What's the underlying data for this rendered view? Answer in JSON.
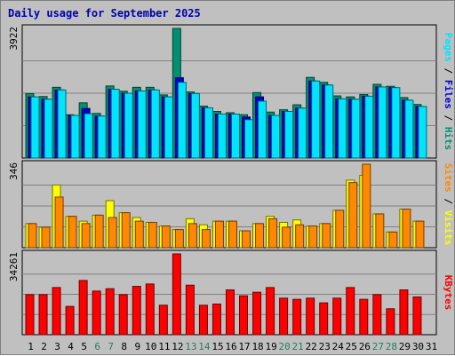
{
  "chart_data": {
    "type": "bar",
    "title": "Daily usage for September 2025",
    "categories": [
      "1",
      "2",
      "3",
      "4",
      "5",
      "6",
      "7",
      "8",
      "9",
      "10",
      "11",
      "12",
      "13",
      "14",
      "15",
      "16",
      "17",
      "18",
      "19",
      "20",
      "21",
      "22",
      "23",
      "24",
      "25",
      "26",
      "27",
      "28",
      "29",
      "30",
      "31"
    ],
    "weekend_days": [
      "6",
      "7",
      "13",
      "14",
      "20",
      "21",
      "27",
      "28"
    ],
    "panels": [
      {
        "id": "pages-files-hits",
        "ymax_label": "3922",
        "ylim": [
          0,
          3922
        ],
        "side_label": [
          "Pages",
          "Files",
          "Hits"
        ],
        "series": [
          {
            "name": "Hits",
            "color": "#009270",
            "values": [
              1950,
              1860,
              2140,
              1310,
              1670,
              1350,
              2180,
              2020,
              2140,
              2140,
              1910,
              3922,
              2000,
              1570,
              1410,
              1370,
              1310,
              1980,
              1390,
              1460,
              1610,
              2440,
              2290,
              1880,
              1850,
              1920,
              2230,
              2170,
              1830,
              1620,
              null
            ]
          },
          {
            "name": "Files",
            "color": "#0000cc",
            "values": [
              1850,
              1780,
              2060,
              1290,
              1500,
              1270,
              2080,
              1960,
              2030,
              2060,
              1850,
              2430,
              1950,
              1520,
              1330,
              1330,
              1240,
              1850,
              1290,
              1410,
              1510,
              2330,
              2210,
              1790,
              1780,
              1870,
              2150,
              2130,
              1750,
              1560,
              null
            ]
          },
          {
            "name": "Pages",
            "color": "#00e4ff",
            "values": [
              1850,
              1780,
              2060,
              1290,
              1340,
              1270,
              2080,
              1960,
              2030,
              2060,
              1850,
              2290,
              1950,
              1520,
              1330,
              1330,
              1160,
              1720,
              1290,
              1410,
              1510,
              2330,
              2210,
              1790,
              1780,
              1870,
              2150,
              2130,
              1750,
              1560,
              null
            ]
          }
        ]
      },
      {
        "id": "visits-sites",
        "ymax_label": "346",
        "ylim": [
          0,
          346
        ],
        "side_label": [
          "Sites",
          "Visits"
        ],
        "series": [
          {
            "name": "Visits",
            "color": "#ffff00",
            "values": [
              100,
              85,
              260,
              130,
              110,
              135,
              195,
              145,
              125,
              105,
              90,
              75,
              120,
              95,
              110,
              110,
              70,
              100,
              130,
              105,
              115,
              90,
              100,
              155,
              280,
              300,
              140,
              65,
              160,
              110,
              null
            ]
          },
          {
            "name": "Sites",
            "color": "#ff8800",
            "values": [
              100,
              85,
              210,
              130,
              100,
              135,
              125,
              145,
              110,
              105,
              90,
              75,
              100,
              75,
              110,
              110,
              70,
              100,
              120,
              85,
              95,
              90,
              100,
              155,
              270,
              346,
              140,
              65,
              160,
              110,
              null
            ]
          }
        ]
      },
      {
        "id": "kbytes",
        "ymax_label": "34261",
        "ylim": [
          0,
          34261
        ],
        "side_label": [
          "KBytes"
        ],
        "series": [
          {
            "name": "KBytes",
            "color": "#ff0000",
            "values": [
              17000,
              17000,
              20000,
              12000,
              23000,
              18500,
              19500,
              17000,
              20500,
              21500,
              12500,
              34261,
              21000,
              12500,
              13000,
              19000,
              16500,
              18000,
              20000,
              15500,
              15000,
              15500,
              13500,
              15500,
              20000,
              15000,
              17000,
              11000,
              19000,
              16000,
              null
            ]
          }
        ]
      }
    ]
  }
}
